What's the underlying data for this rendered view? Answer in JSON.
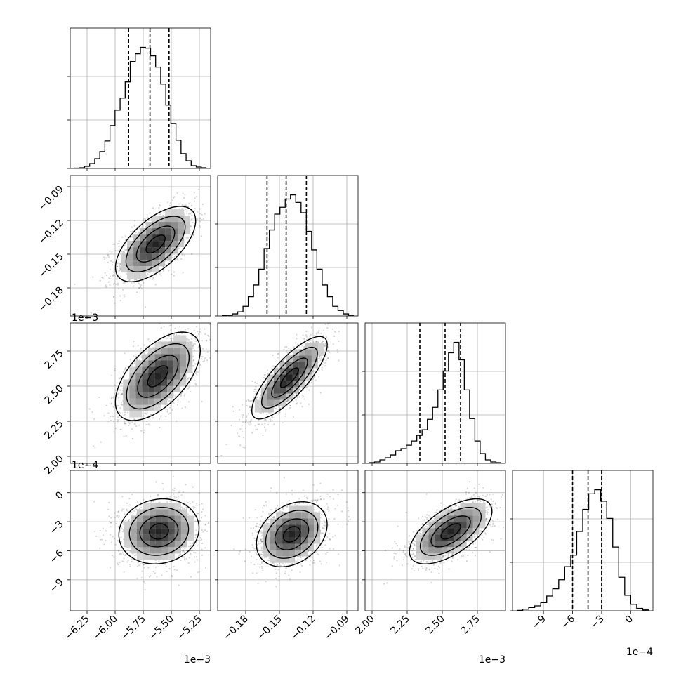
{
  "chart_data": {
    "type": "corner",
    "colors": {
      "hist": "#000000",
      "contour": "#000000",
      "scatter": "#000000",
      "grid": "#b0b0b0"
    },
    "grid": true,
    "params": [
      {
        "axis_range": [
          -0.0064,
          -0.00515
        ],
        "ticks": [
          -0.00625,
          -0.006,
          -0.00575,
          -0.0055,
          -0.00525
        ],
        "tick_labels": [
          "−6.25",
          "−6.00",
          "−5.75",
          "−5.50",
          "−5.25"
        ],
        "offset": "1e−3",
        "quantiles": [
          -0.00588,
          -0.00569,
          -0.00552
        ],
        "mean": -0.00568,
        "sd": 0.000165,
        "hist_counts": [
          0.5,
          1,
          3,
          7,
          14,
          24,
          39,
          61,
          83,
          100,
          123,
          152,
          163,
          172,
          171,
          160,
          144,
          120,
          90,
          64,
          40,
          21,
          11,
          4,
          2,
          1
        ]
      },
      {
        "axis_range": [
          -0.205,
          -0.08
        ],
        "ticks": [
          -0.18,
          -0.15,
          -0.12,
          -0.09
        ],
        "tick_labels": [
          "−0.18",
          "−0.15",
          "−0.12",
          "−0.09"
        ],
        "offset": "",
        "quantiles": [
          -0.161,
          -0.144,
          -0.126
        ],
        "mean": -0.142,
        "sd": 0.017,
        "hist_counts": [
          0.5,
          1,
          3,
          6,
          14,
          28,
          45,
          68,
          98,
          125,
          148,
          158,
          170,
          176,
          165,
          150,
          123,
          96,
          68,
          45,
          28,
          14,
          8,
          3,
          1
        ]
      },
      {
        "axis_range": [
          0.00195,
          0.00295
        ],
        "ticks": [
          0.002,
          0.00225,
          0.0025,
          0.00275
        ],
        "tick_labels": [
          "2.00",
          "2.25",
          "2.50",
          "2.75"
        ],
        "offset": "1e−3",
        "quantiles": [
          0.00234,
          0.00252,
          0.00263
        ],
        "mean": 0.00252,
        "sd": 0.00013,
        "hist_counts": [
          1,
          2,
          5,
          8,
          12,
          18,
          21,
          26,
          32,
          40,
          48,
          63,
          80,
          105,
          132,
          158,
          173,
          148,
          105,
          64,
          32,
          14,
          5,
          2,
          1
        ]
      },
      {
        "axis_range": [
          -0.00122,
          0.00023
        ],
        "ticks": [
          -0.0009,
          -0.0006,
          -0.0003,
          0
        ],
        "tick_labels": [
          "−9",
          "−6",
          "−3",
          "0"
        ],
        "offset": "1e−4",
        "quantiles": [
          -0.0006,
          -0.00044,
          -0.0003
        ],
        "mean": -0.00044,
        "sd": 0.00015,
        "hist_counts": [
          0.5,
          2,
          4,
          6,
          10,
          18,
          27,
          38,
          54,
          68,
          97,
          124,
          143,
          148,
          134,
          113,
          78,
          41,
          19,
          8,
          3,
          1
        ]
      }
    ],
    "pairs": [
      {
        "row": 1,
        "col": 0,
        "center": [
          -0.00564,
          -0.141
        ],
        "sd": [
          0.00017,
          0.016
        ],
        "corr": 0.62
      },
      {
        "row": 2,
        "col": 0,
        "center": [
          -0.00562,
          0.00257
        ],
        "sd": [
          0.00018,
          0.00015
        ],
        "corr": 0.58
      },
      {
        "row": 2,
        "col": 1,
        "center": [
          -0.141,
          0.00256
        ],
        "sd": [
          0.016,
          0.00014
        ],
        "corr": 0.8
      },
      {
        "row": 3,
        "col": 0,
        "center": [
          -0.00561,
          -0.0004
        ],
        "sd": [
          0.00017,
          0.00016
        ],
        "corr": 0.1
      },
      {
        "row": 3,
        "col": 1,
        "center": [
          -0.139,
          -0.00043
        ],
        "sd": [
          0.015,
          0.00016
        ],
        "corr": 0.3
      },
      {
        "row": 3,
        "col": 2,
        "center": [
          0.00256,
          -0.0004
        ],
        "sd": [
          0.00014,
          0.00016
        ],
        "corr": 0.62
      }
    ]
  }
}
